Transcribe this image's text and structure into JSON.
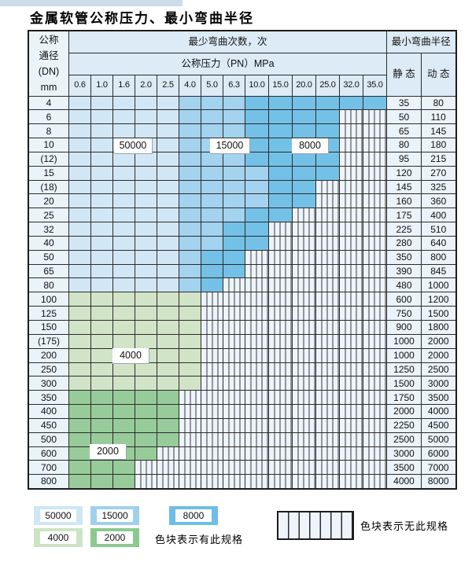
{
  "page": {
    "title": "金属软管公称压力、最小弯曲半径"
  },
  "table": {
    "corner_lines": [
      "公称",
      "通径",
      "(DN)",
      "mm"
    ],
    "bend_cycles_header": "最少弯曲次数，次",
    "pressure_header": "公称压力（PN）MPa",
    "radius_header": "最小弯曲半径",
    "static_header": "静 态",
    "dynamic_header": "动 态",
    "pressure_columns": [
      "0.6",
      "1.0",
      "1.6",
      "2.0",
      "2.5",
      "4.0",
      "5.0",
      "6.3",
      "10.0",
      "15.0",
      "20.0",
      "25.0",
      "32.0",
      "35.0"
    ],
    "cell_code_meaning": {
      "b1": "50000 bend cycles",
      "b2": "15000 bend cycles",
      "b3": "8000 bend cycles",
      "g1": "4000 bend cycles",
      "g2": "2000 bend cycles",
      "h": "no such specification (hatched)"
    },
    "rows": [
      {
        "dn": "4",
        "static": "35",
        "dynamic": "80",
        "cells": [
          "b1",
          "b1",
          "b1",
          "b1",
          "b1",
          "b2",
          "b2",
          "b2",
          "b3",
          "b3",
          "b3",
          "b3",
          "b3",
          "b3"
        ]
      },
      {
        "dn": "6",
        "static": "50",
        "dynamic": "110",
        "cells": [
          "b1",
          "b1",
          "b1",
          "b1",
          "b1",
          "b2",
          "b2",
          "b2",
          "b3",
          "b3",
          "b3",
          "b3",
          "h",
          "h"
        ]
      },
      {
        "dn": "8",
        "static": "65",
        "dynamic": "145",
        "cells": [
          "b1",
          "b1",
          "b1",
          "b1",
          "b1",
          "b2",
          "b2",
          "b2",
          "b3",
          "b3",
          "b3",
          "b3",
          "h",
          "h"
        ]
      },
      {
        "dn": "10",
        "static": "80",
        "dynamic": "180",
        "cells": [
          "b1",
          "b1",
          "b1",
          "b1",
          "b1",
          "b2",
          "b2",
          "b2",
          "b3",
          "b3",
          "b3",
          "b3",
          "h",
          "h"
        ]
      },
      {
        "dn": "(12)",
        "static": "95",
        "dynamic": "215",
        "cells": [
          "b1",
          "b1",
          "b1",
          "b1",
          "b1",
          "b2",
          "b2",
          "b2",
          "b3",
          "b3",
          "b3",
          "b3",
          "h",
          "h"
        ]
      },
      {
        "dn": "15",
        "static": "120",
        "dynamic": "270",
        "cells": [
          "b1",
          "b1",
          "b1",
          "b1",
          "b1",
          "b2",
          "b2",
          "b2",
          "b2",
          "b3",
          "b3",
          "b3",
          "h",
          "h"
        ]
      },
      {
        "dn": "(18)",
        "static": "145",
        "dynamic": "325",
        "cells": [
          "b1",
          "b1",
          "b1",
          "b1",
          "b1",
          "b2",
          "b2",
          "b2",
          "b2",
          "b3",
          "b3",
          "h",
          "h",
          "h"
        ]
      },
      {
        "dn": "20",
        "static": "160",
        "dynamic": "360",
        "cells": [
          "b1",
          "b1",
          "b1",
          "b1",
          "b1",
          "b2",
          "b2",
          "b2",
          "b2",
          "b3",
          "b3",
          "h",
          "h",
          "h"
        ]
      },
      {
        "dn": "25",
        "static": "175",
        "dynamic": "400",
        "cells": [
          "b1",
          "b1",
          "b1",
          "b1",
          "b1",
          "b2",
          "b2",
          "b2",
          "b3",
          "b3",
          "h",
          "h",
          "h",
          "h"
        ]
      },
      {
        "dn": "32",
        "static": "225",
        "dynamic": "510",
        "cells": [
          "b1",
          "b1",
          "b1",
          "b1",
          "b1",
          "b2",
          "b2",
          "b3",
          "b3",
          "h",
          "h",
          "h",
          "h",
          "h"
        ]
      },
      {
        "dn": "40",
        "static": "280",
        "dynamic": "640",
        "cells": [
          "b1",
          "b1",
          "b1",
          "b1",
          "b1",
          "b2",
          "b2",
          "b3",
          "b3",
          "h",
          "h",
          "h",
          "h",
          "h"
        ]
      },
      {
        "dn": "50",
        "static": "350",
        "dynamic": "800",
        "cells": [
          "b1",
          "b1",
          "b1",
          "b1",
          "b1",
          "b2",
          "b3",
          "b3",
          "h",
          "h",
          "h",
          "h",
          "h",
          "h"
        ]
      },
      {
        "dn": "65",
        "static": "390",
        "dynamic": "845",
        "cells": [
          "b1",
          "b1",
          "b1",
          "b1",
          "b1",
          "b2",
          "b3",
          "b3",
          "h",
          "h",
          "h",
          "h",
          "h",
          "h"
        ]
      },
      {
        "dn": "80",
        "static": "480",
        "dynamic": "1000",
        "cells": [
          "b1",
          "b1",
          "b1",
          "b1",
          "b1",
          "b2",
          "b3",
          "h",
          "h",
          "h",
          "h",
          "h",
          "h",
          "h"
        ]
      },
      {
        "dn": "100",
        "static": "600",
        "dynamic": "1200",
        "cells": [
          "g1",
          "g1",
          "g1",
          "g1",
          "g1",
          "g1",
          "h",
          "h",
          "h",
          "h",
          "h",
          "h",
          "h",
          "h"
        ]
      },
      {
        "dn": "125",
        "static": "750",
        "dynamic": "1500",
        "cells": [
          "g1",
          "g1",
          "g1",
          "g1",
          "g1",
          "g1",
          "h",
          "h",
          "h",
          "h",
          "h",
          "h",
          "h",
          "h"
        ]
      },
      {
        "dn": "150",
        "static": "900",
        "dynamic": "1800",
        "cells": [
          "g1",
          "g1",
          "g1",
          "g1",
          "g1",
          "g1",
          "h",
          "h",
          "h",
          "h",
          "h",
          "h",
          "h",
          "h"
        ]
      },
      {
        "dn": "(175)",
        "static": "1000",
        "dynamic": "2000",
        "cells": [
          "g1",
          "g1",
          "g1",
          "g1",
          "g1",
          "g1",
          "h",
          "h",
          "h",
          "h",
          "h",
          "h",
          "h",
          "h"
        ]
      },
      {
        "dn": "200",
        "static": "1000",
        "dynamic": "2000",
        "cells": [
          "g1",
          "g1",
          "g1",
          "g1",
          "g1",
          "g1",
          "h",
          "h",
          "h",
          "h",
          "h",
          "h",
          "h",
          "h"
        ]
      },
      {
        "dn": "250",
        "static": "1250",
        "dynamic": "2500",
        "cells": [
          "g1",
          "g1",
          "g1",
          "g1",
          "g1",
          "g1",
          "h",
          "h",
          "h",
          "h",
          "h",
          "h",
          "h",
          "h"
        ]
      },
      {
        "dn": "300",
        "static": "1500",
        "dynamic": "3000",
        "cells": [
          "g1",
          "g1",
          "g1",
          "g1",
          "g1",
          "g1",
          "h",
          "h",
          "h",
          "h",
          "h",
          "h",
          "h",
          "h"
        ]
      },
      {
        "dn": "350",
        "static": "1750",
        "dynamic": "3500",
        "cells": [
          "g2",
          "g2",
          "g2",
          "g2",
          "g2",
          "h",
          "h",
          "h",
          "h",
          "h",
          "h",
          "h",
          "h",
          "h"
        ]
      },
      {
        "dn": "400",
        "static": "2000",
        "dynamic": "4000",
        "cells": [
          "g2",
          "g2",
          "g2",
          "g2",
          "g2",
          "h",
          "h",
          "h",
          "h",
          "h",
          "h",
          "h",
          "h",
          "h"
        ]
      },
      {
        "dn": "450",
        "static": "2250",
        "dynamic": "4500",
        "cells": [
          "g2",
          "g2",
          "g2",
          "g2",
          "g2",
          "h",
          "h",
          "h",
          "h",
          "h",
          "h",
          "h",
          "h",
          "h"
        ]
      },
      {
        "dn": "500",
        "static": "2500",
        "dynamic": "5000",
        "cells": [
          "g2",
          "g2",
          "g2",
          "g2",
          "g2",
          "h",
          "h",
          "h",
          "h",
          "h",
          "h",
          "h",
          "h",
          "h"
        ]
      },
      {
        "dn": "600",
        "static": "3000",
        "dynamic": "6000",
        "cells": [
          "g2",
          "g2",
          "g2",
          "g2",
          "h",
          "h",
          "h",
          "h",
          "h",
          "h",
          "h",
          "h",
          "h",
          "h"
        ]
      },
      {
        "dn": "700",
        "static": "3500",
        "dynamic": "7000",
        "cells": [
          "g2",
          "g2",
          "g2",
          "h",
          "h",
          "h",
          "h",
          "h",
          "h",
          "h",
          "h",
          "h",
          "h",
          "h"
        ]
      },
      {
        "dn": "800",
        "static": "4000",
        "dynamic": "8000",
        "cells": [
          "g2",
          "g2",
          "g2",
          "h",
          "h",
          "h",
          "h",
          "h",
          "h",
          "h",
          "h",
          "h",
          "h",
          "h"
        ]
      }
    ]
  },
  "overlay_labels": [
    {
      "id": "lbl-50000",
      "text": "50000"
    },
    {
      "id": "lbl-15000",
      "text": "15000"
    },
    {
      "id": "lbl-8000",
      "text": "8000"
    },
    {
      "id": "lbl-4000",
      "text": "4000"
    },
    {
      "id": "lbl-2000",
      "text": "2000"
    }
  ],
  "legend": {
    "chips": [
      {
        "id": "chip-50000",
        "label": "50000",
        "color": "#cfe6f5"
      },
      {
        "id": "chip-15000",
        "label": "15000",
        "color": "#9fd0ee"
      },
      {
        "id": "chip-8000",
        "label": "8000",
        "color": "#6fbde6"
      },
      {
        "id": "chip-4000",
        "label": "4000",
        "color": "#cde4c4"
      },
      {
        "id": "chip-2000",
        "label": "2000",
        "color": "#8bc98f"
      }
    ],
    "has_spec_note": "色块表示有此规格",
    "no_spec_note": "色块表示无此规格"
  },
  "colors": {
    "cycles_50000": "#d2e7f6",
    "cycles_15000": "#a3d3ef",
    "cycles_8000": "#74c1e8",
    "cycles_4000": "#d2e4c8",
    "cycles_2000": "#97cc9a",
    "hatch_bg": "#eef4fb",
    "header_bg": "#dcebf6",
    "label_col_bg": "#eaf2fa",
    "grid": "#2b2b2b"
  }
}
